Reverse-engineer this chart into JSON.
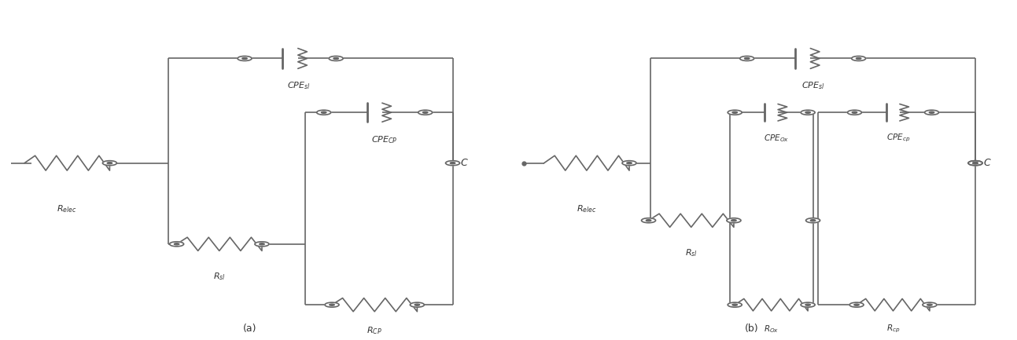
{
  "bg_color": "#ffffff",
  "line_color": "#666666",
  "text_color": "#333333",
  "lw": 1.2,
  "label_a": "(a)",
  "label_b": "(b)",
  "circuit_a": {
    "R_elec_label": "$R_{elec}$",
    "CPE_sl_label": "$CPE_{sl}$",
    "R_sl_label": "$R_{sl}$",
    "CPE_CP_label": "$CPE_{CP}$",
    "R_CP_label": "$R_{CP}$"
  },
  "circuit_b": {
    "R_elec_label": "$R_{elec}$",
    "CPE_sl_label": "$CPE_{sl}$",
    "R_sl_label": "$R_{sl}$",
    "CPE_Ox_label": "$CPE_{Ox}$",
    "R_Ox_label": "$R_{Ox}$",
    "CPE_cp_label": "$CPE_{cp}$",
    "R_cp_label": "$R_{cp}$"
  }
}
